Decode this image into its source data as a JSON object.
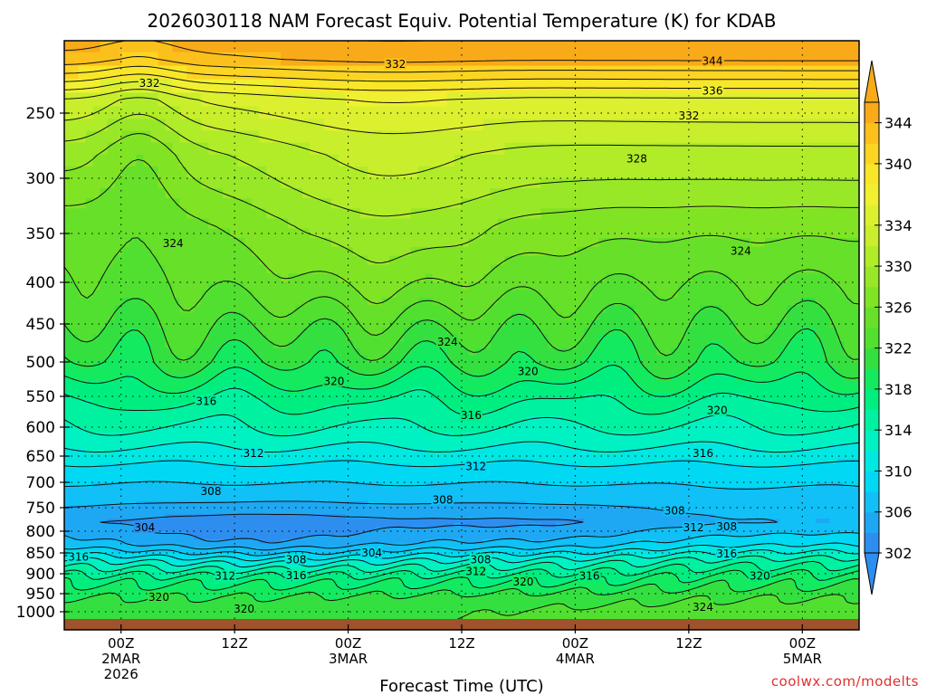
{
  "chart_data": {
    "type": "contour",
    "title": "2026030118 NAM Forecast Equiv. Potential Temperature (K) for KDAB",
    "xlabel": "Forecast Time (UTC)",
    "ylabel": "",
    "y_ticks": [
      "250",
      "300",
      "350",
      "400",
      "450",
      "500",
      "550",
      "600",
      "650",
      "700",
      "750",
      "800",
      "850",
      "900",
      "950",
      "1000"
    ],
    "y_tick_values": [
      250,
      300,
      350,
      400,
      450,
      500,
      550,
      600,
      650,
      700,
      750,
      800,
      850,
      900,
      950,
      1000
    ],
    "ylim": [
      200,
      1000
    ],
    "x_ticks": [
      {
        "hour": 6,
        "lines": [
          "00Z",
          "2MAR",
          "2026"
        ]
      },
      {
        "hour": 18,
        "lines": [
          "12Z"
        ]
      },
      {
        "hour": 30,
        "lines": [
          "00Z",
          "3MAR"
        ]
      },
      {
        "hour": 42,
        "lines": [
          "12Z"
        ]
      },
      {
        "hour": 54,
        "lines": [
          "00Z",
          "4MAR"
        ]
      },
      {
        "hour": 66,
        "lines": [
          "12Z"
        ]
      },
      {
        "hour": 78,
        "lines": [
          "00Z",
          "5MAR"
        ]
      }
    ],
    "xlim": [
      0,
      84
    ],
    "colorbar": {
      "ticks": [
        302,
        306,
        310,
        314,
        318,
        322,
        326,
        330,
        334,
        340,
        344
      ],
      "levels": [
        302,
        304,
        306,
        308,
        310,
        312,
        314,
        316,
        318,
        320,
        322,
        324,
        326,
        328,
        330,
        332,
        334,
        336,
        338,
        340,
        342,
        344
      ],
      "colors": [
        "#2e8ef0",
        "#1ea8f4",
        "#10c0f6",
        "#00d8f4",
        "#00e8e2",
        "#00f2c2",
        "#00f2a0",
        "#00ee80",
        "#14ea60",
        "#34e040",
        "#52e030",
        "#66e028",
        "#80e424",
        "#98e828",
        "#b0ec28",
        "#c8ee2c",
        "#dcf030",
        "#f0f030",
        "#f8e628",
        "#fcd422",
        "#fcc01c",
        "#f8aa18"
      ]
    },
    "ground_color": "#a0522d",
    "contour_labels": [
      {
        "value": "332",
        "hour": 35.0,
        "p": 217
      },
      {
        "value": "332",
        "hour": 9.0,
        "p": 230
      },
      {
        "value": "344",
        "hour": 68.5,
        "p": 215
      },
      {
        "value": "336",
        "hour": 68.5,
        "p": 235
      },
      {
        "value": "332",
        "hour": 66.0,
        "p": 252
      },
      {
        "value": "328",
        "hour": 60.5,
        "p": 285
      },
      {
        "value": "324",
        "hour": 11.5,
        "p": 360
      },
      {
        "value": "324",
        "hour": 71.5,
        "p": 368
      },
      {
        "value": "324",
        "hour": 40.5,
        "p": 474
      },
      {
        "value": "320",
        "hour": 28.5,
        "p": 528
      },
      {
        "value": "320",
        "hour": 49.0,
        "p": 514
      },
      {
        "value": "316",
        "hour": 15.0,
        "p": 558
      },
      {
        "value": "316",
        "hour": 43.0,
        "p": 581
      },
      {
        "value": "320",
        "hour": 69.0,
        "p": 573
      },
      {
        "value": "312",
        "hour": 20.0,
        "p": 645
      },
      {
        "value": "312",
        "hour": 43.5,
        "p": 670
      },
      {
        "value": "316",
        "hour": 67.5,
        "p": 645
      },
      {
        "value": "308",
        "hour": 15.5,
        "p": 718
      },
      {
        "value": "308",
        "hour": 40.0,
        "p": 735
      },
      {
        "value": "308",
        "hour": 64.5,
        "p": 757
      },
      {
        "value": "304",
        "hour": 8.5,
        "p": 792
      },
      {
        "value": "312",
        "hour": 66.5,
        "p": 792
      },
      {
        "value": "308",
        "hour": 70.0,
        "p": 790
      },
      {
        "value": "316",
        "hour": 1.5,
        "p": 860
      },
      {
        "value": "304",
        "hour": 32.5,
        "p": 850
      },
      {
        "value": "308",
        "hour": 24.5,
        "p": 866
      },
      {
        "value": "308",
        "hour": 44.0,
        "p": 866
      },
      {
        "value": "316",
        "hour": 70.0,
        "p": 852
      },
      {
        "value": "312",
        "hour": 17.0,
        "p": 906
      },
      {
        "value": "316",
        "hour": 24.5,
        "p": 904
      },
      {
        "value": "312",
        "hour": 43.5,
        "p": 895
      },
      {
        "value": "316",
        "hour": 55.5,
        "p": 906
      },
      {
        "value": "320",
        "hour": 48.5,
        "p": 920
      },
      {
        "value": "320",
        "hour": 73.5,
        "p": 906
      },
      {
        "value": "320",
        "hour": 10.0,
        "p": 960
      },
      {
        "value": "320",
        "hour": 19.0,
        "p": 992
      },
      {
        "value": "324",
        "hour": 67.5,
        "p": 987
      }
    ]
  },
  "credit": "coolwx.com/modelts"
}
